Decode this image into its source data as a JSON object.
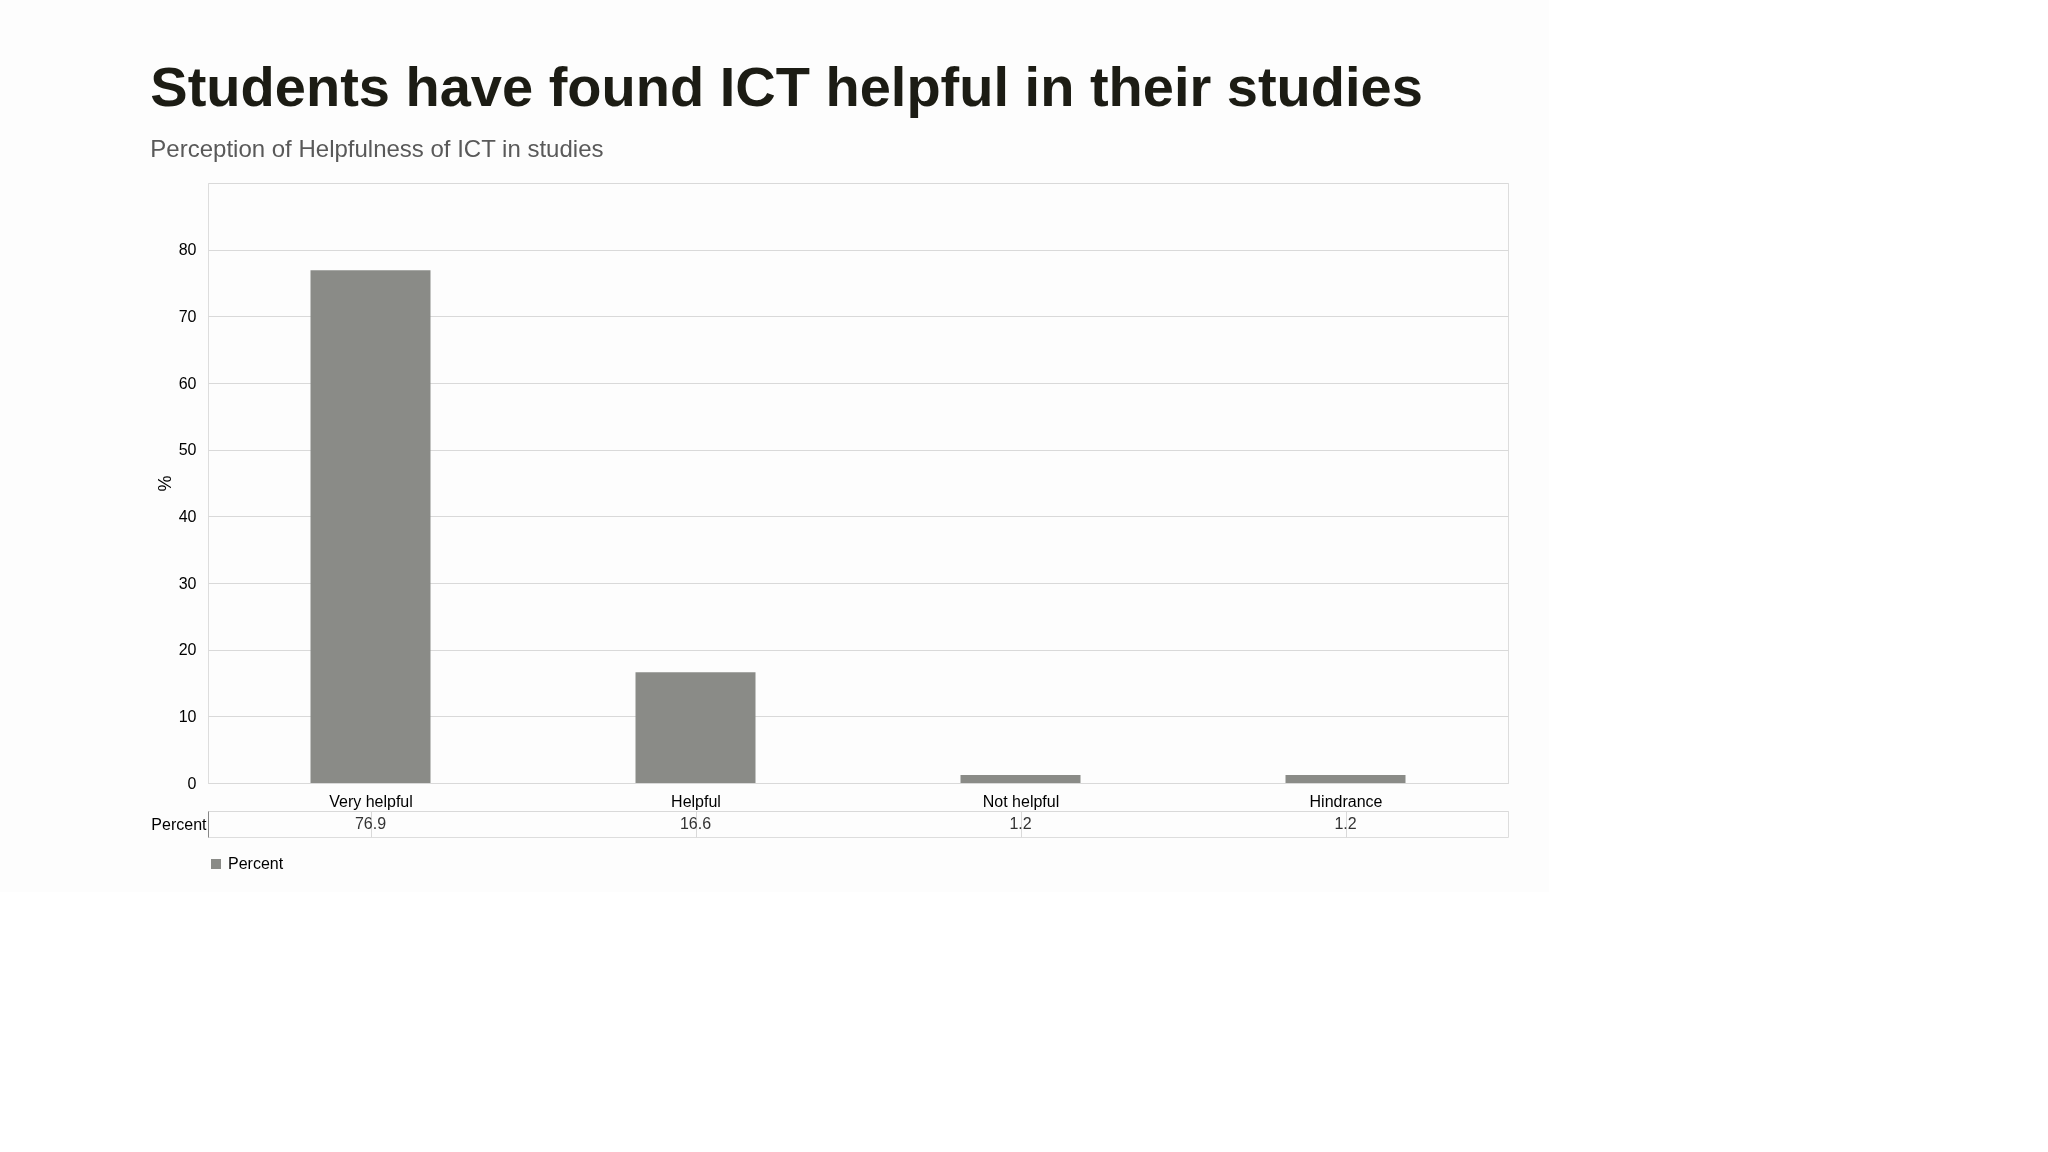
{
  "chart_data": {
    "type": "bar",
    "title": "Students have found ICT helpful in their studies",
    "subtitle": "Perception of Helpfulness of ICT in studies",
    "ylabel": "%",
    "categories": [
      "Very helpful",
      "Helpful",
      "Not helpful",
      "Hindrance"
    ],
    "series": [
      {
        "name": "Percent",
        "color": "#8a8b87",
        "values": [
          76.9,
          16.6,
          1.2,
          1.2
        ]
      }
    ],
    "ylim": [
      0,
      90
    ],
    "yticks": [
      0,
      10,
      20,
      30,
      40,
      50,
      60,
      70,
      80,
      {
        "value": 90,
        "label": null
      }
    ],
    "grid": "y",
    "legend": "bottom",
    "data_labels": true
  }
}
